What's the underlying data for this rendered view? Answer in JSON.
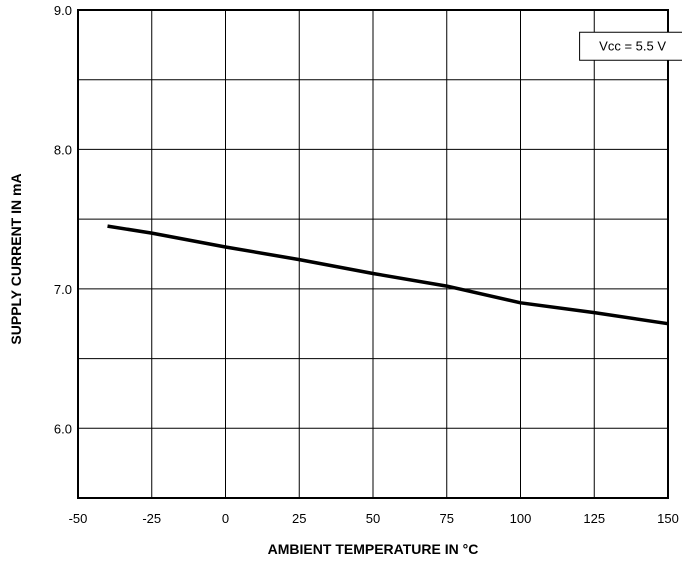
{
  "chart_data": {
    "type": "line",
    "xlabel": "AMBIENT TEMPERATURE IN °C",
    "ylabel": "SUPPLY CURRENT IN mA",
    "xlim": [
      -50,
      150
    ],
    "ylim": [
      5.5,
      9.0
    ],
    "x_ticks": [
      -50,
      -25,
      0,
      25,
      50,
      75,
      100,
      125,
      150
    ],
    "x_tick_labels": [
      "-50",
      "-25",
      "0",
      "25",
      "50",
      "75",
      "100",
      "125",
      "150"
    ],
    "y_ticks": [
      6.0,
      7.0,
      8.0,
      9.0
    ],
    "y_tick_labels": [
      "6.0",
      "7.0",
      "8.0",
      "9.0"
    ],
    "grid": true,
    "grid_x": [
      -50,
      -25,
      0,
      25,
      50,
      75,
      100,
      125,
      150
    ],
    "grid_y": [
      5.5,
      6.0,
      6.5,
      7.0,
      7.5,
      8.0,
      8.5,
      9.0
    ],
    "series": [
      {
        "x": [
          -40,
          -25,
          0,
          25,
          50,
          75,
          100,
          125,
          150
        ],
        "values": [
          7.45,
          7.4,
          7.3,
          7.21,
          7.11,
          7.02,
          6.9,
          6.83,
          6.75
        ]
      }
    ],
    "annotation": {
      "text": "Vcc = 5.5 V",
      "x": 138,
      "y": 8.74
    }
  }
}
